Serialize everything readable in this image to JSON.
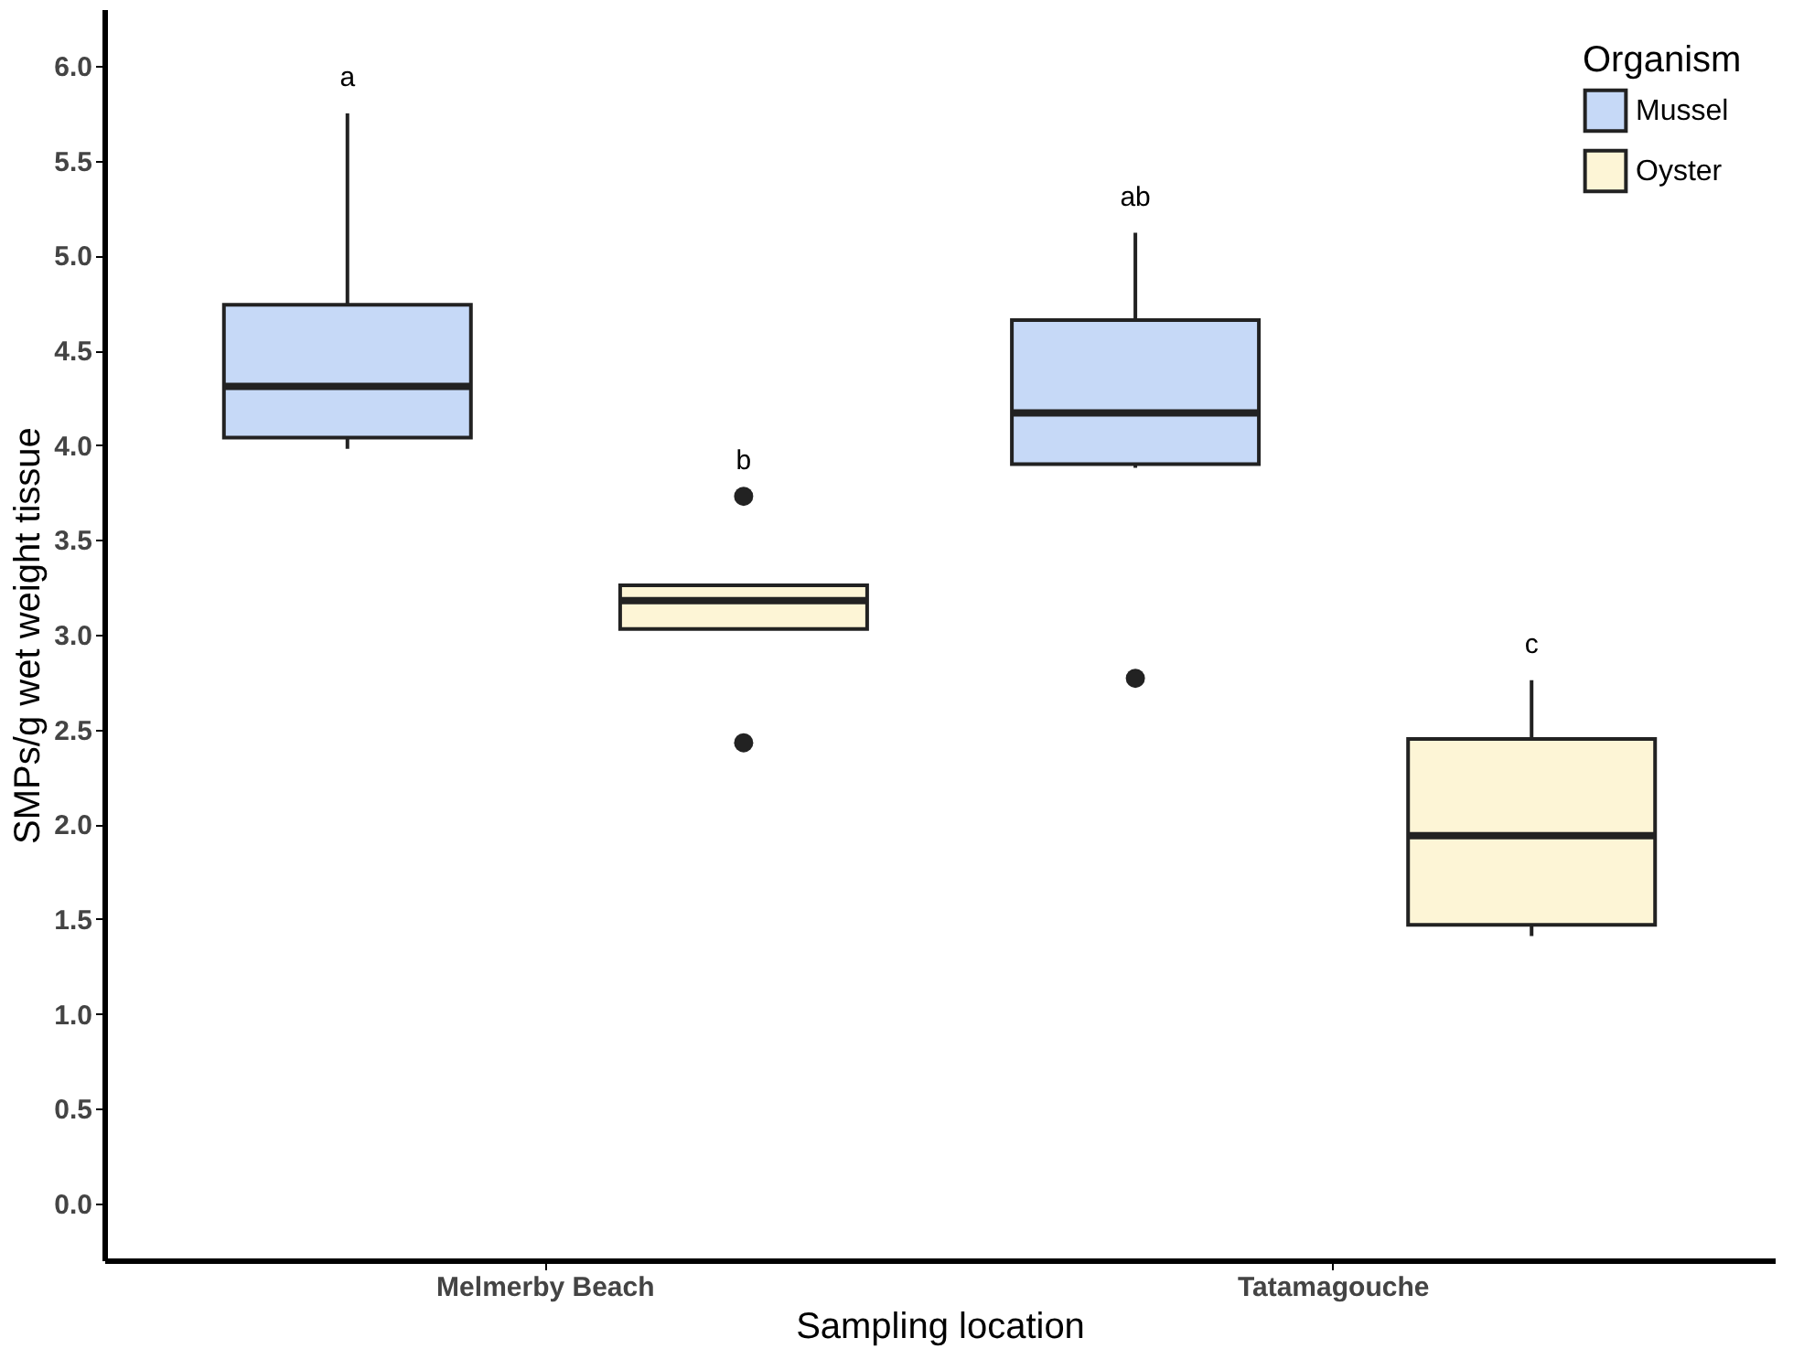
{
  "chart_data": {
    "type": "box",
    "xlabel": "Sampling location",
    "ylabel": "SMPs/g wet weight tissue",
    "legend_title": "Organism",
    "categories": [
      "Melmerby Beach",
      "Tatamagouche"
    ],
    "series": [
      {
        "name": "Mussel",
        "color": "#c6d9f7",
        "boxes": [
          {
            "low": 3.98,
            "q1": 4.04,
            "median": 4.31,
            "q3": 4.74,
            "high": 5.75
          },
          {
            "low": 3.88,
            "q1": 3.9,
            "median": 4.17,
            "q3": 4.66,
            "high": 5.12,
            "outliers": [
              2.77
            ]
          }
        ]
      },
      {
        "name": "Oyster",
        "color": "#fdf5d6",
        "boxes": [
          {
            "low": 3.03,
            "q1": 3.03,
            "median": 3.18,
            "q3": 3.26,
            "high": 3.26,
            "outliers": [
              3.73,
              2.43
            ]
          },
          {
            "low": 1.41,
            "q1": 1.47,
            "median": 1.94,
            "q3": 2.45,
            "high": 2.76
          }
        ]
      }
    ],
    "annotations": [
      "a",
      "b",
      "ab",
      "c"
    ],
    "ylim": [
      -0.3,
      6.3
    ],
    "yticks": [
      {
        "value": 0,
        "label": "0.0"
      },
      {
        "value": 0.5,
        "label": "0.5"
      },
      {
        "value": 1,
        "label": "1.0"
      },
      {
        "value": 1.5,
        "label": "1.5"
      },
      {
        "value": 2,
        "label": "2.0"
      },
      {
        "value": 2.5,
        "label": "2.5"
      },
      {
        "value": 3,
        "label": "3.0"
      },
      {
        "value": 3.5,
        "label": "3.5"
      },
      {
        "value": 4,
        "label": "4.0"
      },
      {
        "value": 4.5,
        "label": "4.5"
      },
      {
        "value": 5,
        "label": "5.0"
      },
      {
        "value": 5.5,
        "label": "5.5"
      },
      {
        "value": 6,
        "label": "6.0"
      }
    ],
    "grid": false,
    "legend": "top right"
  }
}
